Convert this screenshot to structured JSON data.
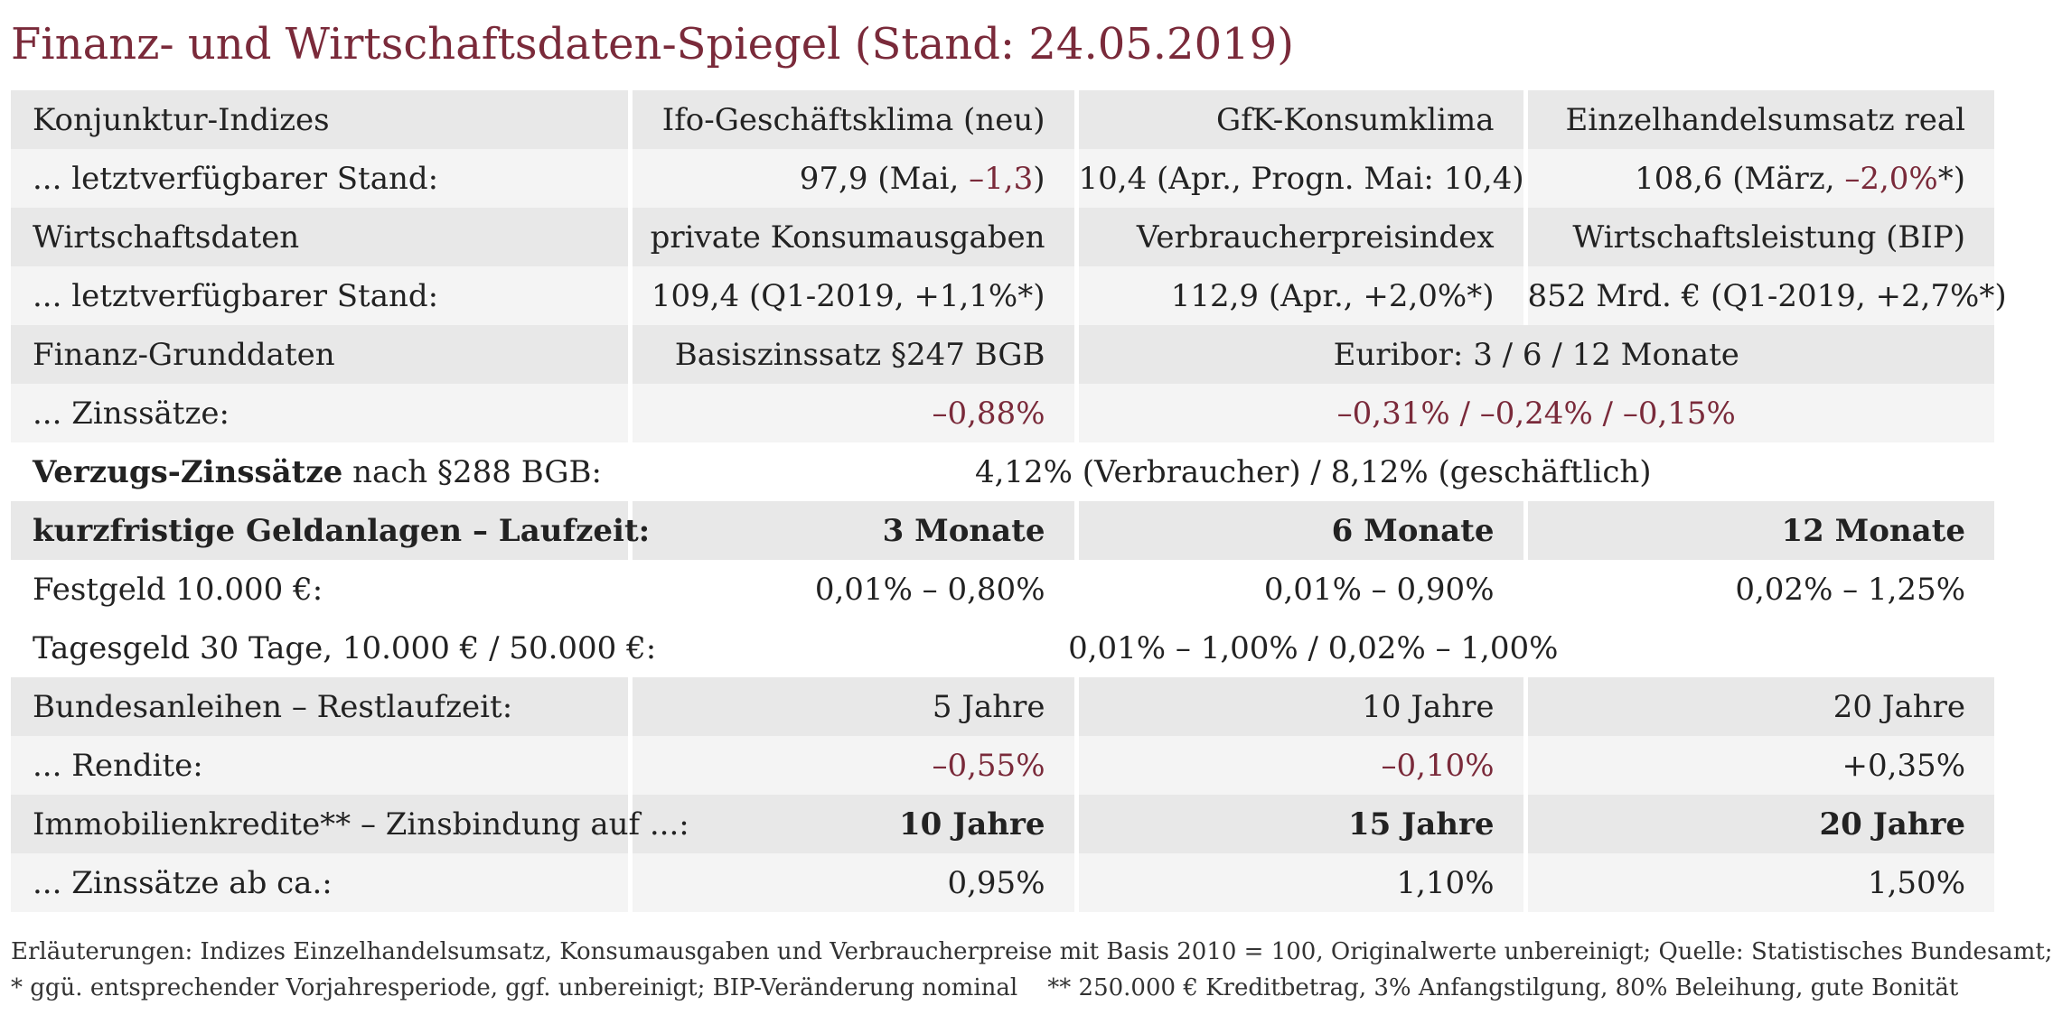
{
  "title": "Finanz- und Wirtschaftsdaten-Spiegel (Stand: 24.05.2019)",
  "colors": {
    "accent": "#7a2a3a",
    "row_shade_dark": "#e8e8e8",
    "row_shade_light": "#f4f4f4"
  },
  "konjunktur": {
    "header": [
      "Konjunktur-Indizes",
      "Ifo-Geschäftsklima (neu)",
      "GfK-Konsumklima",
      "Einzelhandelsumsatz real"
    ],
    "label": "... letztverfügbarer Stand:",
    "ifo": {
      "pre": "97,9 (Mai, ",
      "delta": "–1,3",
      "post": ")"
    },
    "gfk": "10,4 (Apr., Progn. Mai: 10,4)",
    "einzelhandel": {
      "pre": "108,6 (März, ",
      "delta": "–2,0%",
      "post": "*)"
    }
  },
  "wirtschaft": {
    "header": [
      "Wirtschaftsdaten",
      "private Konsumausgaben",
      "Verbraucherpreisindex",
      "Wirtschaftsleistung (BIP)"
    ],
    "label": "... letztverfügbarer Stand:",
    "values": [
      "109,4 (Q1-2019, +1,1%*)",
      "112,9 (Apr., +2,0%*)",
      "852 Mrd. € (Q1-2019, +2,7%*)"
    ]
  },
  "finanz": {
    "header": [
      "Finanz-Grunddaten",
      "Basiszinssatz §247 BGB",
      "Euribor: 3 / 6 / 12 Monate"
    ],
    "label": "... Zinssätze:",
    "basiszins": "–0,88%",
    "euribor": "–0,31% / –0,24% / –0,15%"
  },
  "verzug": {
    "label_bold": "Verzugs-Zinssätze",
    "label_rest": " nach §288 BGB:",
    "value": "4,12% (Verbraucher) / 8,12% (geschäftlich)"
  },
  "geldanlagen": {
    "header": [
      "kurzfristige Geldanlagen – Laufzeit:",
      "3 Monate",
      "6 Monate",
      "12 Monate"
    ],
    "festgeld_label": "Festgeld 10.000 €:",
    "festgeld": [
      "0,01% – 0,80%",
      "0,01% – 0,90%",
      "0,02% – 1,25%"
    ],
    "tagesgeld_label": "Tagesgeld 30 Tage, 10.000 € / 50.000 €:",
    "tagesgeld": "0,01% – 1,00% / 0,02% – 1,00%"
  },
  "bund": {
    "header": [
      "Bundesanleihen – Restlaufzeit:",
      "5 Jahre",
      "10 Jahre",
      "20 Jahre"
    ],
    "label": "... Rendite:",
    "values": [
      "–0,55%",
      "–0,10%",
      "+0,35%"
    ]
  },
  "immo": {
    "header": [
      "Immobilienkredite** – Zinsbindung auf ...:",
      "10 Jahre",
      "15 Jahre",
      "20 Jahre"
    ],
    "label": "... Zinssätze ab ca.:",
    "values": [
      "0,95%",
      "1,10%",
      "1,50%"
    ]
  },
  "footnotes": {
    "line1": "Erläuterungen: Indizes Einzelhandelsumsatz, Konsumausgaben und Verbraucherpreise mit Basis 2010 = 100, Originalwerte unbereinigt; Quelle: Statistisches Bundesamt;",
    "line2": "* ggü. entsprechender Vorjahresperiode, ggf. unbereinigt; BIP-Veränderung nominal    ** 250.000 € Kreditbetrag, 3% Anfangstilgung, 80% Beleihung, gute Bonität"
  }
}
